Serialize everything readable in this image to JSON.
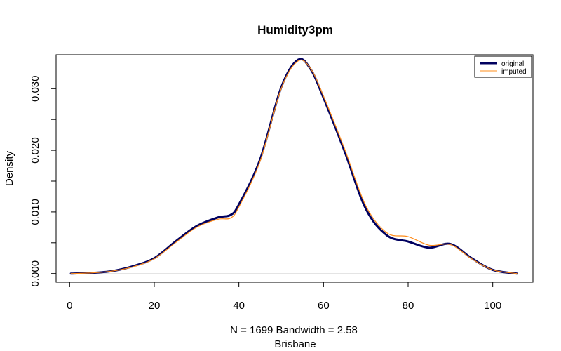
{
  "chart_data": {
    "type": "line",
    "title": "Humidity3pm",
    "xlabel": "N = 1699   Bandwidth = 2.58",
    "subtitle": "Brisbane",
    "ylabel": "Density",
    "xlim": [
      -3.2,
      109.5
    ],
    "ylim": [
      -0.0014,
      0.0355
    ],
    "x_ticks": [
      0,
      20,
      40,
      60,
      80,
      100
    ],
    "x_tick_labels": [
      "0",
      "20",
      "40",
      "60",
      "80",
      "100"
    ],
    "y_ticks": [
      0.0,
      0.005,
      0.01,
      0.015,
      0.02,
      0.025,
      0.03
    ],
    "y_tick_labels": [
      "0.000",
      "",
      "0.010",
      "",
      "0.020",
      "",
      "0.030"
    ],
    "grid": false,
    "legend": {
      "position": "top-right",
      "entries": [
        "original",
        "imputed"
      ]
    },
    "series": [
      {
        "name": "original",
        "color": "#00005f",
        "x": [
          0.3,
          5,
          10,
          15,
          20,
          25,
          30,
          35,
          38,
          40,
          45,
          50,
          54,
          57,
          60,
          65,
          70,
          75,
          80,
          85,
          90,
          95,
          100,
          105.7
        ],
        "y": [
          0.0,
          0.0001,
          0.0004,
          0.0012,
          0.0025,
          0.0052,
          0.0077,
          0.0091,
          0.0095,
          0.0112,
          0.0185,
          0.0302,
          0.0347,
          0.0331,
          0.0285,
          0.0198,
          0.0105,
          0.0062,
          0.0052,
          0.0042,
          0.0048,
          0.0025,
          0.0006,
          0.0
        ]
      },
      {
        "name": "imputed",
        "color": "#ff8c1a",
        "x": [
          0.3,
          5,
          10,
          15,
          20,
          25,
          30,
          35,
          38,
          40,
          45,
          50,
          54,
          57,
          60,
          65,
          70,
          75,
          80,
          85,
          90,
          95,
          100,
          105.7
        ],
        "y": [
          0.0,
          0.0001,
          0.0004,
          0.0011,
          0.0024,
          0.005,
          0.0075,
          0.0088,
          0.009,
          0.0108,
          0.0182,
          0.03,
          0.0345,
          0.0332,
          0.0288,
          0.0202,
          0.011,
          0.0066,
          0.006,
          0.0046,
          0.0047,
          0.0024,
          0.0006,
          0.0
        ]
      }
    ]
  }
}
